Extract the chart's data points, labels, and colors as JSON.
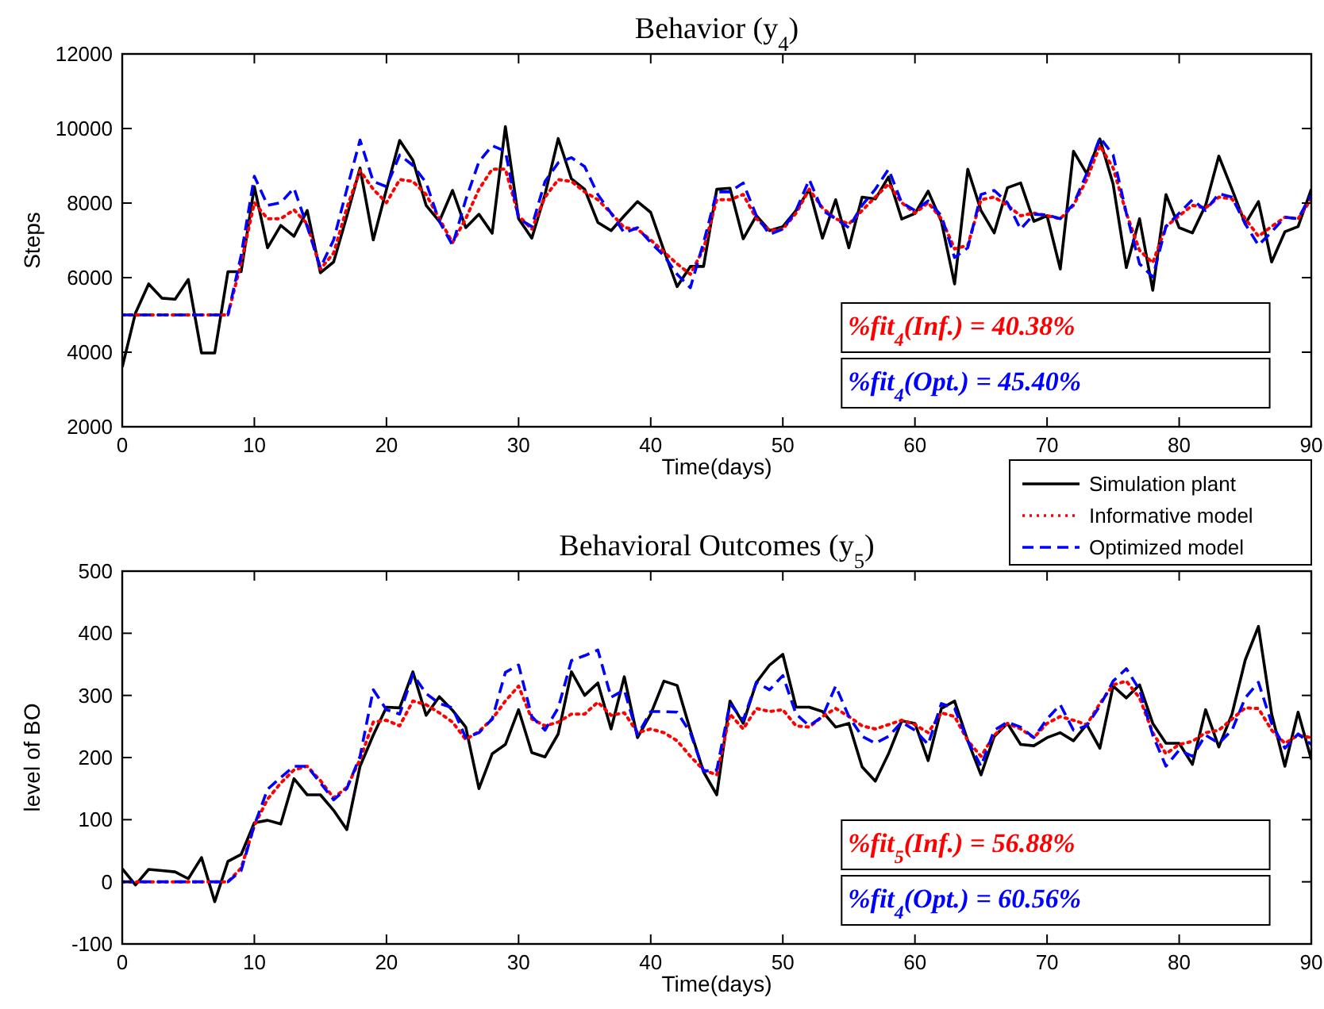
{
  "chart_data": [
    {
      "type": "line",
      "title": "Behavior (y$_{4}$)",
      "xlabel": "Time(days)",
      "ylabel": "Steps",
      "xlim": [
        0,
        90
      ],
      "xticks": [
        0,
        10,
        20,
        30,
        40,
        50,
        60,
        70,
        80,
        90
      ],
      "ylim": [
        2000,
        12000
      ],
      "yticks": [
        2000,
        4000,
        6000,
        8000,
        10000,
        12000
      ],
      "grid": false,
      "legend": "bottom right",
      "marker": "none",
      "x": [
        0,
        1,
        2,
        3,
        4,
        5,
        6,
        7,
        8,
        9,
        10,
        11,
        12,
        13,
        14,
        15,
        16,
        17,
        18,
        19,
        20,
        21,
        22,
        23,
        24,
        25,
        26,
        27,
        28,
        29,
        30,
        31,
        32,
        33,
        34,
        35,
        36,
        37,
        38,
        39,
        40,
        41,
        42,
        43,
        44,
        45,
        46,
        47,
        48,
        49,
        50,
        51,
        52,
        53,
        54,
        55,
        56,
        57,
        58,
        59,
        60,
        61,
        62,
        63,
        64,
        65,
        66,
        67,
        68,
        69,
        70,
        71,
        72,
        73,
        74,
        75,
        76,
        77,
        78,
        79,
        80,
        81,
        82,
        83,
        84,
        85,
        86,
        87,
        88,
        89,
        90
      ],
      "series": [
        {
          "name": "Simulation plant",
          "color": "#000000",
          "line_style": "solid",
          "values": [
            3600,
            5050,
            5830,
            5450,
            5420,
            5950,
            3980,
            3980,
            6160,
            6160,
            8440,
            6800,
            7400,
            7110,
            7800,
            6130,
            6420,
            7650,
            8940,
            7010,
            8370,
            9680,
            9150,
            7940,
            7510,
            8340,
            7340,
            7700,
            7190,
            10050,
            7580,
            7060,
            8230,
            9730,
            8650,
            8370,
            7480,
            7260,
            7660,
            8040,
            7750,
            6730,
            5760,
            6300,
            6300,
            8370,
            8400,
            7040,
            7660,
            7260,
            7370,
            7800,
            8370,
            7060,
            8090,
            6800,
            8160,
            8110,
            8700,
            7570,
            7720,
            8320,
            7510,
            5830,
            8910,
            7800,
            7200,
            8410,
            8540,
            7510,
            7660,
            6230,
            9390,
            8790,
            9720,
            8510,
            6270,
            7580,
            5660,
            8230,
            7340,
            7200,
            7940,
            9260,
            8370,
            7440,
            8040,
            6420,
            7230,
            7370,
            8370
          ]
        },
        {
          "name": "Informative model",
          "color": "#ff0000",
          "line_style": "dotted",
          "values": [
            5000,
            5000,
            5000,
            5000,
            5000,
            5000,
            5000,
            5000,
            5000,
            6400,
            8010,
            7580,
            7580,
            7820,
            7440,
            6230,
            6660,
            7870,
            8870,
            8370,
            8010,
            8630,
            8580,
            8230,
            7580,
            6940,
            7580,
            8370,
            8910,
            8910,
            7660,
            7300,
            8160,
            8630,
            8580,
            8300,
            8090,
            7730,
            7340,
            7300,
            7010,
            6690,
            6370,
            6090,
            6770,
            8090,
            8090,
            8230,
            7580,
            7260,
            7300,
            7730,
            8370,
            7870,
            7580,
            7440,
            7800,
            8160,
            8510,
            8010,
            7730,
            8010,
            7580,
            6770,
            6870,
            8090,
            8160,
            7940,
            7660,
            7730,
            7660,
            7580,
            7940,
            8630,
            9540,
            8940,
            7730,
            6730,
            6400,
            7370,
            7660,
            7940,
            7870,
            8160,
            8110,
            7580,
            7110,
            7370,
            7620,
            7580,
            8110
          ]
        },
        {
          "name": "Optimized model",
          "color": "#0000ff",
          "line_style": "dashed",
          "values": [
            5000,
            5000,
            5000,
            5000,
            5000,
            5000,
            5000,
            5000,
            5000,
            6600,
            8720,
            7940,
            8010,
            8400,
            7370,
            6270,
            7010,
            8370,
            9690,
            8580,
            8440,
            9290,
            9010,
            8550,
            7510,
            6870,
            8090,
            9110,
            9540,
            9390,
            7580,
            7370,
            8580,
            9080,
            9220,
            8980,
            8230,
            7730,
            7200,
            7340,
            6940,
            6590,
            6090,
            5730,
            6940,
            8300,
            8300,
            8540,
            7660,
            7160,
            7300,
            7800,
            8630,
            7800,
            7580,
            7340,
            7940,
            8370,
            8910,
            8010,
            7800,
            8060,
            7660,
            6540,
            6800,
            8230,
            8340,
            8010,
            7300,
            7700,
            7680,
            7580,
            7970,
            8790,
            9760,
            9290,
            7730,
            6370,
            6020,
            7370,
            7730,
            8090,
            7800,
            8250,
            8160,
            7440,
            6870,
            7230,
            7620,
            7580,
            8230
          ]
        }
      ],
      "annotations": [
        "%fit$_{4}$(Inf.) = 40.38%",
        "%fit$_{4}$(Opt.) = 45.40%"
      ]
    },
    {
      "type": "line",
      "title": "Behavioral Outcomes (y$_{5}$)",
      "xlabel": "Time(days)",
      "ylabel": "level of BO",
      "xlim": [
        0,
        90
      ],
      "xticks": [
        0,
        10,
        20,
        30,
        40,
        50,
        60,
        70,
        80,
        90
      ],
      "ylim": [
        -100,
        500
      ],
      "yticks": [
        -100,
        0,
        100,
        200,
        300,
        400,
        500
      ],
      "grid": false,
      "marker": "none",
      "x": [
        0,
        1,
        2,
        3,
        4,
        5,
        6,
        7,
        8,
        9,
        10,
        11,
        12,
        13,
        14,
        15,
        16,
        17,
        18,
        19,
        20,
        21,
        22,
        23,
        24,
        25,
        26,
        27,
        28,
        29,
        30,
        31,
        32,
        33,
        34,
        35,
        36,
        37,
        38,
        39,
        40,
        41,
        42,
        43,
        44,
        45,
        46,
        47,
        48,
        49,
        50,
        51,
        52,
        53,
        54,
        55,
        56,
        57,
        58,
        59,
        60,
        61,
        62,
        63,
        64,
        65,
        66,
        67,
        68,
        69,
        70,
        71,
        72,
        73,
        74,
        75,
        76,
        77,
        78,
        79,
        80,
        81,
        82,
        83,
        84,
        85,
        86,
        87,
        88,
        89,
        90
      ],
      "series": [
        {
          "color": "#000000",
          "line_style": "solid",
          "values": [
            21,
            -5,
            20,
            18,
            16,
            5,
            39,
            -32,
            33,
            44,
            95,
            99,
            93,
            166,
            140,
            140,
            115,
            84,
            186,
            236,
            281,
            280,
            338,
            268,
            298,
            276,
            249,
            150,
            206,
            221,
            277,
            208,
            201,
            238,
            338,
            300,
            320,
            246,
            330,
            232,
            270,
            323,
            316,
            244,
            177,
            140,
            291,
            255,
            321,
            349,
            366,
            281,
            281,
            274,
            249,
            255,
            185,
            162,
            206,
            259,
            255,
            195,
            279,
            291,
            227,
            172,
            234,
            255,
            221,
            219,
            232,
            240,
            227,
            253,
            215,
            315,
            296,
            317,
            255,
            223,
            223,
            189,
            277,
            217,
            270,
            357,
            411,
            270,
            186,
            273,
            197
          ]
        },
        {
          "color": "#ff0000",
          "line_style": "dotted",
          "values": [
            0,
            0,
            0,
            0,
            0,
            0,
            0,
            0,
            0,
            22,
            91,
            133,
            159,
            180,
            186,
            163,
            135,
            152,
            197,
            257,
            260,
            251,
            291,
            285,
            272,
            257,
            229,
            242,
            262,
            291,
            315,
            262,
            251,
            257,
            270,
            270,
            289,
            268,
            272,
            240,
            246,
            240,
            227,
            202,
            180,
            172,
            270,
            246,
            279,
            274,
            277,
            251,
            249,
            266,
            279,
            266,
            251,
            246,
            253,
            260,
            253,
            240,
            272,
            266,
            227,
            202,
            236,
            255,
            246,
            232,
            255,
            266,
            260,
            253,
            287,
            317,
            323,
            296,
            240,
            206,
            221,
            226,
            240,
            244,
            262,
            280,
            279,
            244,
            223,
            236,
            232
          ]
        },
        {
          "color": "#0000ff",
          "line_style": "dashed",
          "values": [
            0,
            0,
            0,
            0,
            0,
            0,
            0,
            0,
            0,
            18,
            91,
            149,
            168,
            186,
            186,
            159,
            132,
            150,
            202,
            309,
            277,
            270,
            334,
            303,
            287,
            280,
            232,
            240,
            262,
            337,
            349,
            266,
            244,
            280,
            356,
            364,
            373,
            297,
            309,
            236,
            274,
            274,
            273,
            240,
            178,
            180,
            287,
            260,
            321,
            309,
            332,
            270,
            251,
            266,
            315,
            266,
            234,
            223,
            234,
            257,
            244,
            221,
            287,
            279,
            227,
            186,
            244,
            257,
            249,
            232,
            262,
            285,
            244,
            251,
            283,
            323,
            343,
            309,
            236,
            186,
            212,
            202,
            236,
            223,
            244,
            296,
            321,
            255,
            215,
            238,
            221
          ]
        }
      ],
      "annotations": [
        "%fit$_{5}$(Inf.) = 56.88%",
        "%fit$_{4}$(Opt.) = 60.56%"
      ]
    }
  ]
}
